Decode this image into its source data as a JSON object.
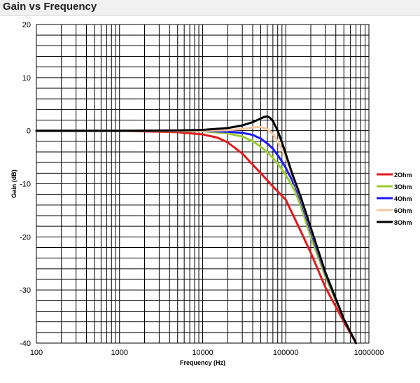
{
  "chart_data": {
    "type": "line",
    "title": "Gain vs Frequency",
    "xlabel": "Frequency (Hz)",
    "ylabel": "Gain (dB)",
    "xscale": "log",
    "xlim": [
      100,
      1000000
    ],
    "ylim": [
      -40,
      20
    ],
    "x_ticks": [
      "100",
      "1000",
      "10000",
      "100000",
      "1000000"
    ],
    "y_ticks": [
      "20",
      "10",
      "0",
      "-10",
      "-20",
      "-30",
      "-40"
    ],
    "grid": true,
    "legend_position": "right",
    "series": [
      {
        "name": "2Ohm",
        "color": "#e41a1c",
        "x": [
          100,
          1000,
          5000,
          10000,
          15000,
          20000,
          30000,
          40000,
          50000,
          70000,
          100000,
          150000,
          200000,
          300000,
          500000,
          700000
        ],
        "y": [
          0,
          0,
          -0.3,
          -0.7,
          -1.3,
          -2.2,
          -4.3,
          -6.4,
          -8.0,
          -10.5,
          -13.0,
          -18.8,
          -23.0,
          -29.5,
          -36.0,
          -40.0
        ]
      },
      {
        "name": "3Ohm",
        "color": "#9acd32",
        "x": [
          100,
          1000,
          10000,
          20000,
          30000,
          40000,
          50000,
          60000,
          70000,
          80000,
          100000,
          130000,
          150000,
          200000,
          300000,
          500000,
          700000
        ],
        "y": [
          0,
          0,
          -0.1,
          -0.5,
          -1.1,
          -2.0,
          -3.0,
          -4.1,
          -5.1,
          -6.2,
          -8.3,
          -11.5,
          -14.0,
          -20.0,
          -27.5,
          -35.5,
          -40.0
        ]
      },
      {
        "name": "4Ohm",
        "color": "#1a1aff",
        "x": [
          100,
          1000,
          10000,
          20000,
          30000,
          40000,
          50000,
          60000,
          70000,
          80000,
          90000,
          100000,
          130000,
          150000,
          200000,
          300000,
          500000,
          700000
        ],
        "y": [
          0,
          0,
          0,
          -0.2,
          -0.4,
          -0.8,
          -1.5,
          -2.4,
          -3.4,
          -4.6,
          -5.8,
          -7.0,
          -10.5,
          -13.0,
          -19.0,
          -27.0,
          -35.5,
          -40.0
        ]
      },
      {
        "name": "6Ohm",
        "color": "#f4c7a1",
        "x": [
          100,
          1000,
          10000,
          20000,
          30000,
          40000,
          50000,
          60000,
          70000,
          80000,
          90000,
          100000,
          120000,
          150000,
          200000,
          300000,
          500000,
          700000
        ],
        "y": [
          0,
          0,
          0,
          0.1,
          0.3,
          0.6,
          0.7,
          0.3,
          -0.6,
          -2.0,
          -3.5,
          -5.0,
          -8.5,
          -12.5,
          -18.5,
          -26.8,
          -35.5,
          -40.0
        ]
      },
      {
        "name": "8Ohm",
        "color": "#000000",
        "x": [
          100,
          1000,
          5000,
          10000,
          20000,
          30000,
          40000,
          50000,
          55000,
          60000,
          65000,
          70000,
          80000,
          90000,
          100000,
          120000,
          150000,
          200000,
          300000,
          500000,
          700000
        ],
        "y": [
          0,
          0,
          0.05,
          0.15,
          0.5,
          1.0,
          1.6,
          2.3,
          2.6,
          2.7,
          2.4,
          1.8,
          0.0,
          -2.2,
          -4.4,
          -8.2,
          -12.3,
          -18.3,
          -26.7,
          -35.5,
          -40.0
        ]
      }
    ]
  }
}
